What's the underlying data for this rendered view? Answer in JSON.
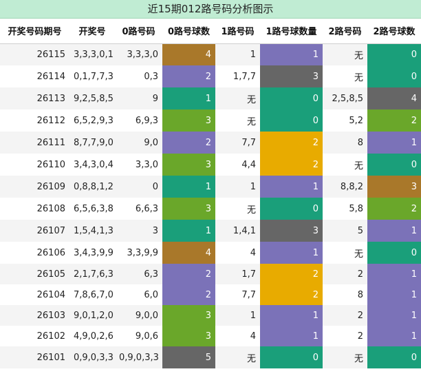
{
  "title": "近15期012路号码分析图示",
  "headers": [
    "开奖号码期号",
    "开奖号",
    "0路号码",
    "0路号球数",
    "1路号码",
    "1路号球数量",
    "2路号码",
    "2路号球数"
  ],
  "palette": {
    "0": "#1a9f7a",
    "1": "#1a9f7a",
    "2": "#7b72b8",
    "3": "#6aa72a",
    "4": "#a9782a",
    "5": "#666666"
  },
  "rows": [
    {
      "issue": "26115",
      "draw": "3,3,3,0,1",
      "r0": "3,3,3,0",
      "c0": "4",
      "r1": "1",
      "c1": "1",
      "r2": "无",
      "c2": "0"
    },
    {
      "issue": "26114",
      "draw": "0,1,7,7,3",
      "r0": "0,3",
      "c0": "2",
      "r1": "1,7,7",
      "c1": "3",
      "r2": "无",
      "c2": "0"
    },
    {
      "issue": "26113",
      "draw": "9,2,5,8,5",
      "r0": "9",
      "c0": "1",
      "r1": "无",
      "c1": "0",
      "r2": "2,5,8,5",
      "c2": "4"
    },
    {
      "issue": "26112",
      "draw": "6,5,2,9,3",
      "r0": "6,9,3",
      "c0": "3",
      "r1": "无",
      "c1": "0",
      "r2": "5,2",
      "c2": "2"
    },
    {
      "issue": "26111",
      "draw": "8,7,7,9,0",
      "r0": "9,0",
      "c0": "2",
      "r1": "7,7",
      "c1": "2",
      "r2": "8",
      "c2": "1"
    },
    {
      "issue": "26110",
      "draw": "3,4,3,0,4",
      "r0": "3,3,0",
      "c0": "3",
      "r1": "4,4",
      "c1": "2",
      "r2": "无",
      "c2": "0"
    },
    {
      "issue": "26109",
      "draw": "0,8,8,1,2",
      "r0": "0",
      "c0": "1",
      "r1": "1",
      "c1": "1",
      "r2": "8,8,2",
      "c2": "3"
    },
    {
      "issue": "26108",
      "draw": "6,5,6,3,8",
      "r0": "6,6,3",
      "c0": "3",
      "r1": "无",
      "c1": "0",
      "r2": "5,8",
      "c2": "2"
    },
    {
      "issue": "26107",
      "draw": "1,5,4,1,3",
      "r0": "3",
      "c0": "1",
      "r1": "1,4,1",
      "c1": "3",
      "r2": "5",
      "c2": "1"
    },
    {
      "issue": "26106",
      "draw": "3,4,3,9,9",
      "r0": "3,3,9,9",
      "c0": "4",
      "r1": "4",
      "c1": "1",
      "r2": "无",
      "c2": "0"
    },
    {
      "issue": "26105",
      "draw": "2,1,7,6,3",
      "r0": "6,3",
      "c0": "2",
      "r1": "1,7",
      "c1": "2",
      "r2": "2",
      "c2": "1"
    },
    {
      "issue": "26104",
      "draw": "7,8,6,7,0",
      "r0": "6,0",
      "c0": "2",
      "r1": "7,7",
      "c1": "2",
      "r2": "8",
      "c2": "1"
    },
    {
      "issue": "26103",
      "draw": "9,0,1,2,0",
      "r0": "9,0,0",
      "c0": "3",
      "r1": "1",
      "c1": "1",
      "r2": "2",
      "c2": "1"
    },
    {
      "issue": "26102",
      "draw": "4,9,0,2,6",
      "r0": "9,0,6",
      "c0": "3",
      "r1": "4",
      "c1": "1",
      "r2": "2",
      "c2": "1"
    },
    {
      "issue": "26101",
      "draw": "0,9,0,3,3",
      "r0": "0,9,0,3,3",
      "c0": "5",
      "r1": "无",
      "c1": "0",
      "r2": "无",
      "c2": "0"
    }
  ],
  "colorOverrides": {
    "c0": {
      "1": "#1a9f7a",
      "2": "#7b72b8",
      "3": "#6aa72a",
      "4": "#a9782a",
      "5": "#666666"
    },
    "c1": {
      "0": "#1a9f7a",
      "1": "#7b72b8",
      "2": "#e8ab00",
      "3": "#666666"
    },
    "c2": {
      "0": "#1a9f7a",
      "1": "#7b72b8",
      "2": "#6aa72a",
      "3": "#a9782a",
      "4": "#666666"
    }
  }
}
